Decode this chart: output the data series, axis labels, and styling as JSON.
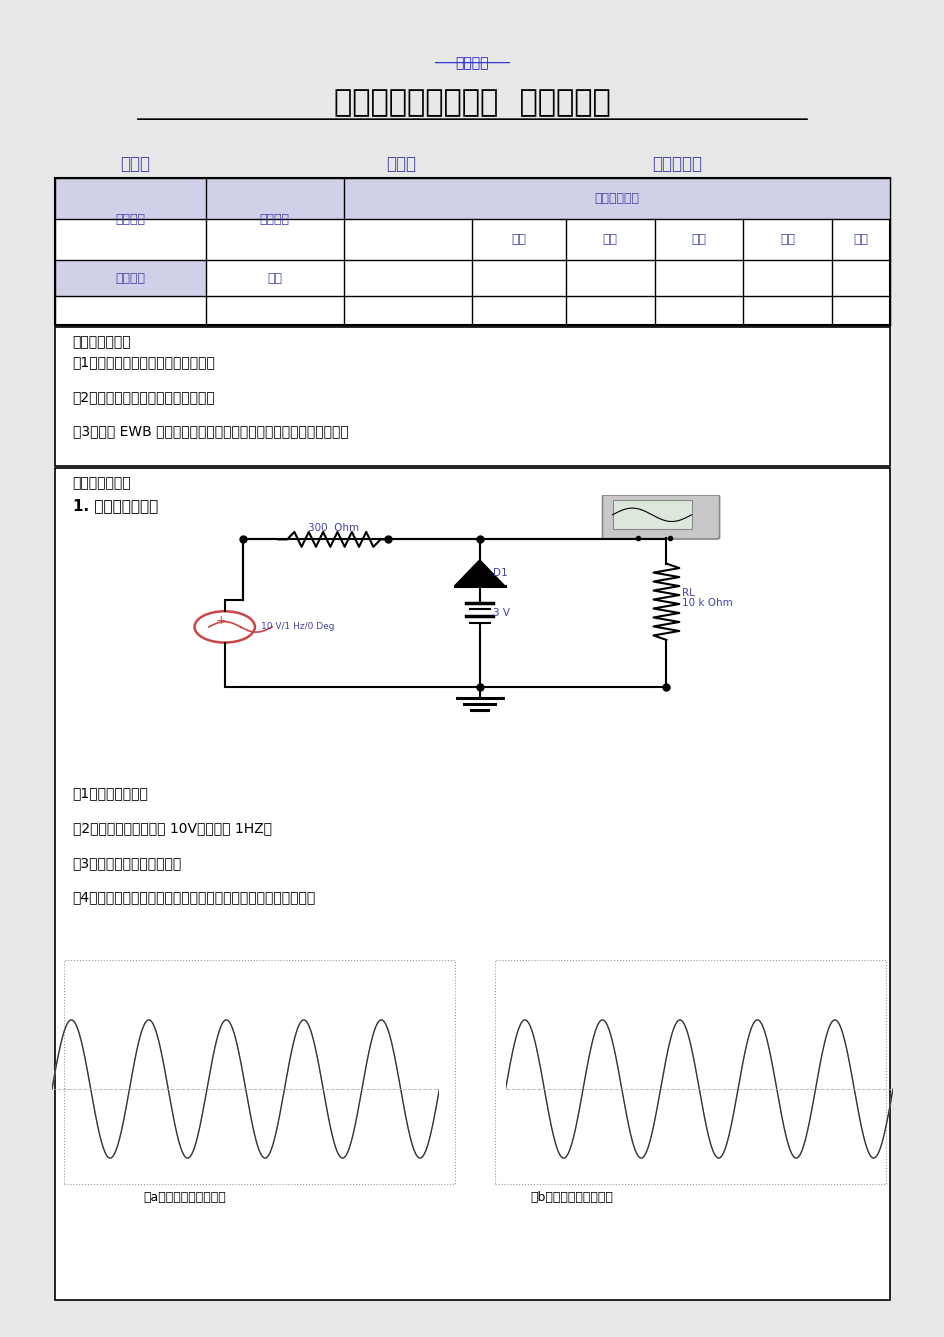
{
  "title": "限幅电路和钳位电路  实验报告书",
  "watermark": "爱西安网",
  "student_fields": [
    "学号：",
    "姓名：",
    "学习中心："
  ],
  "table_headers_row1": [
    "课程名称",
    "实验项目",
    "实验项目类型"
  ],
  "table_headers_row2": [
    "验证",
    "演示",
    "综合",
    "设计",
    "其他"
  ],
  "table_row2": [
    "指导老师",
    "成绩"
  ],
  "section1_title": "一、实验目的：",
  "section1_items": [
    "（1）掌握二极管限幅电路的工作原理",
    "（2）掌握二极管钳位电路的工作原理",
    "（3）掌握 EWB 软件的交流信号源、示波器、函数发生器的使用方法"
  ],
  "section2_title": "二、实验步骤：",
  "section2_sub": "1. 二极管限幅电路",
  "resistor_label": "300  Ohm",
  "diode_label": "D1",
  "battery_label": "3 V",
  "rl_label1": "RL",
  "rl_label2": "10 k Ohm",
  "source_label": "10 V/1 Hz/0 Deg",
  "steps": [
    "（1）按图连接电路",
    "（2）设置交流电压源为 10V，频率为 1HZ。",
    "（3）激活电路进行仿真运行",
    "（4）参照下图给出输入输出信号的波形图，说明电路的工作原理"
  ],
  "wave_label_a": "（a）上限幅电路波形图",
  "wave_label_b": "（b）下限幅电路波形图",
  "bg_color": "#e8e8e8",
  "page_color": "#ffffff",
  "text_color_main": "#000000",
  "text_color_blue": "#4444aa",
  "text_color_red": "#cc4444",
  "text_color_link": "#2222cc",
  "header_bg": "#d0d0e8"
}
